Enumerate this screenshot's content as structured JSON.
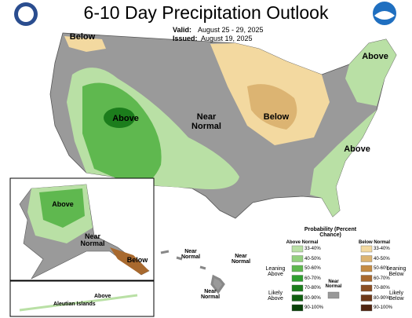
{
  "header": {
    "title": "6-10 Day Precipitation Outlook",
    "valid_label": "Valid:",
    "valid_dates": "August 25 - 29, 2025",
    "issued_label": "Issued:",
    "issued_date": "August 19, 2025"
  },
  "map_labels": [
    "Below",
    "Above",
    "Above",
    "Near Normal",
    "Below",
    "Above"
  ],
  "alaska_labels": [
    "Above",
    "Near Normal",
    "Below"
  ],
  "aleutian": {
    "title": "Aleutian Islands",
    "label": "Above"
  },
  "hawaii_labels": [
    "Near Normal",
    "Near Normal",
    "Near Normal"
  ],
  "legend": {
    "title": "Probability (Percent Chance)",
    "above": {
      "heading": "Above Normal",
      "groups": [
        "Leaning Above",
        "Likely Above"
      ],
      "items": [
        {
          "label": "33-40%",
          "color": "#b9e0a5"
        },
        {
          "label": "40-50%",
          "color": "#94d07f"
        },
        {
          "label": "50-60%",
          "color": "#5fb84f"
        },
        {
          "label": "60-70%",
          "color": "#2f9e2f"
        },
        {
          "label": "70-80%",
          "color": "#1c7d1c"
        },
        {
          "label": "80-90%",
          "color": "#105f10"
        },
        {
          "label": "90-100%",
          "color": "#084008"
        }
      ]
    },
    "near": {
      "label": "Near Normal",
      "color": "#999999"
    },
    "below": {
      "heading": "Below Normal",
      "groups": [
        "Leaning Below",
        "Likely Below"
      ],
      "items": [
        {
          "label": "33-40%",
          "color": "#f3d9a0"
        },
        {
          "label": "40-50%",
          "color": "#dcb472"
        },
        {
          "label": "50-60%",
          "color": "#c58c44"
        },
        {
          "label": "60-70%",
          "color": "#a8692e"
        },
        {
          "label": "70-80%",
          "color": "#8a4e22"
        },
        {
          "label": "80-90%",
          "color": "#6d3818"
        },
        {
          "label": "90-100%",
          "color": "#4f2410"
        }
      ]
    }
  }
}
